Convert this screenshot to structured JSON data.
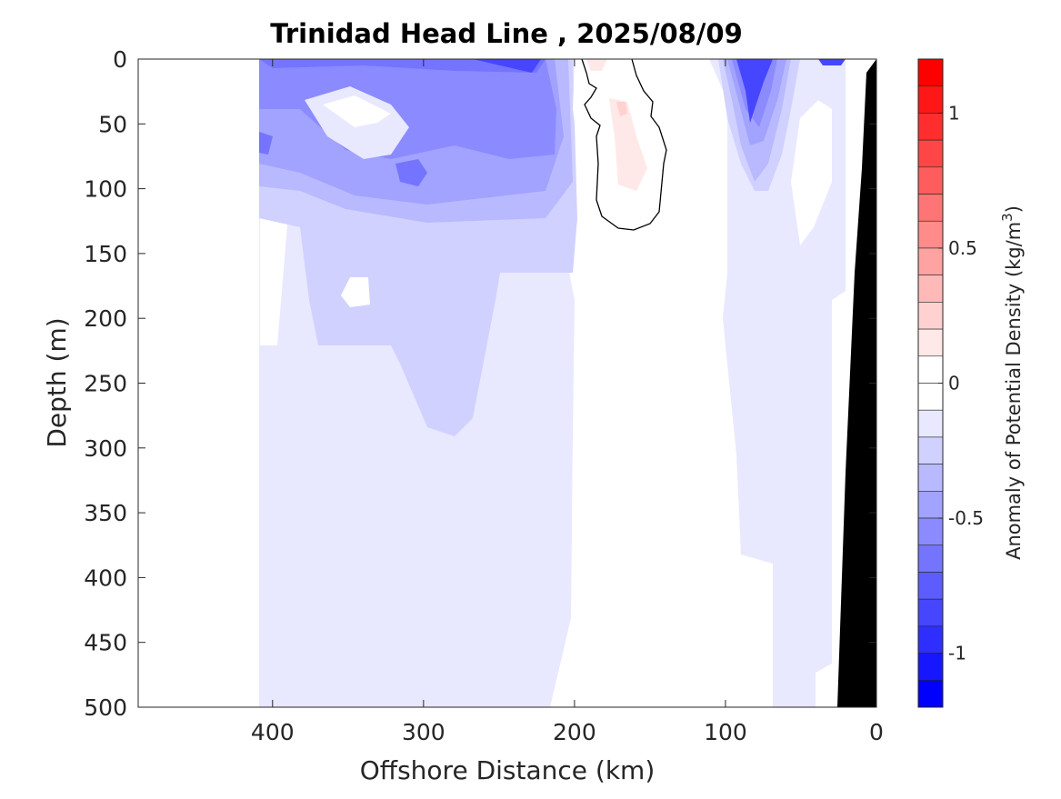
{
  "chart_data": {
    "type": "heatmap",
    "subtype": "filled-contour",
    "title": "Trinidad Head Line , 2025/08/09",
    "xlabel": "Offshore Distance (km)",
    "ylabel": "Depth (m)",
    "xlim": [
      489,
      0
    ],
    "ylim": [
      0,
      500
    ],
    "x_reversed": true,
    "y_reversed": true,
    "xticks": [
      400,
      300,
      200,
      100,
      0
    ],
    "yticks": [
      0,
      50,
      100,
      150,
      200,
      250,
      300,
      350,
      400,
      450,
      500
    ],
    "colorbar": {
      "label": "Anomaly of Potential Density (kg/m",
      "label_sup": "3",
      "label_end": ")",
      "range": [
        -1.2,
        1.2
      ],
      "step": 0.1,
      "ticks": [
        1,
        0.5,
        0,
        -0.5,
        -1
      ],
      "tick_labels": [
        "1",
        "0.5",
        "0",
        "-0.5",
        "-1"
      ],
      "colormap": "blue-white-red",
      "neg_color": "#0000ff",
      "pos_color": "#ff0000",
      "zero_color": "#ffffff"
    },
    "contour_line_level": 0,
    "data_extent_km": [
      20,
      410
    ],
    "bathymetry_color": "#000000"
  }
}
